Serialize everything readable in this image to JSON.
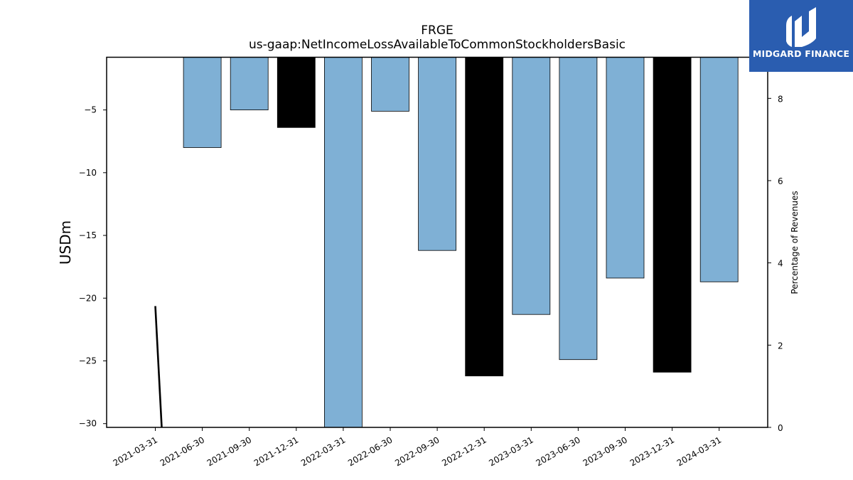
{
  "chart_data": {
    "type": "bar",
    "title": "FRGE",
    "subtitle": "us-gaap:NetIncomeLossAvailableToCommonStockholdersBasic",
    "ylabel": "USDm",
    "ylabel_right": "Percentage of Revenues",
    "categories": [
      "2021-03-31",
      "2021-06-30",
      "2021-09-30",
      "2021-12-31",
      "2022-03-31",
      "2022-06-30",
      "2022-09-30",
      "2022-12-31",
      "2023-03-31",
      "2023-06-30",
      "2023-09-30",
      "2023-12-31",
      "2024-03-31"
    ],
    "values": [
      null,
      -8.0,
      -5.0,
      -6.4,
      -30.3,
      -5.1,
      -16.2,
      -26.2,
      -21.3,
      -24.9,
      -18.4,
      -25.9,
      -18.7
    ],
    "bar_colors": [
      "#7fb0d5",
      "#7fb0d5",
      "#7fb0d5",
      "#000000",
      "#7fb0d5",
      "#7fb0d5",
      "#7fb0d5",
      "#000000",
      "#7fb0d5",
      "#7fb0d5",
      "#7fb0d5",
      "#000000",
      "#7fb0d5"
    ],
    "ylim": [
      -30.3,
      -0.8
    ],
    "yticks": [
      -5,
      -10,
      -15,
      -20,
      -25,
      -30
    ],
    "ytick_labels": [
      "−5",
      "−10",
      "−15",
      "−20",
      "−25",
      "−30"
    ],
    "y2lim": [
      0,
      9
    ],
    "y2ticks": [
      0,
      2,
      4,
      6,
      8
    ],
    "line_series": {
      "x": [
        "2021-03-31",
        "2021-03-31"
      ],
      "y2": [
        2.95,
        0
      ],
      "color": "#000000"
    },
    "grid": false
  },
  "logo": {
    "text": "MIDGARD FINANCE",
    "background": "#2a5db0"
  }
}
